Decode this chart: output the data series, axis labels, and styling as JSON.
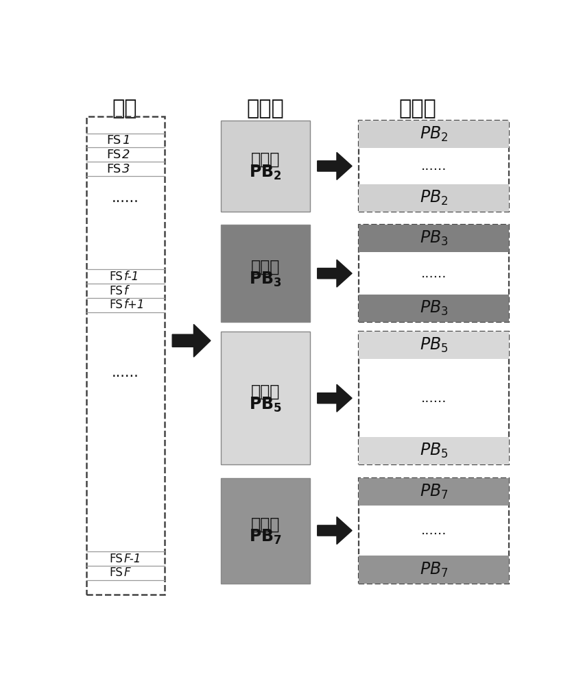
{
  "title_col1": "频片",
  "title_col2": "频块段",
  "title_col3": "素数块",
  "bg_color": "#ffffff",
  "pb2_color": "#d0d0d0",
  "pb3_color": "#808080",
  "pb5_color": "#d8d8d8",
  "pb7_color": "#939393",
  "arrow_color": "#1a1a1a",
  "fs_labels_top": [
    "FS  1",
    "FS  2",
    "FS  3"
  ],
  "fs_labels_mid": [
    "FS f-1",
    "FS f",
    "FS f+1"
  ],
  "fs_labels_bot": [
    "FS F-1",
    "FS F"
  ],
  "dots": "......",
  "block_labels_cn": [
    "频块段",
    "频块段",
    "频块段",
    "频块段"
  ],
  "block_labels_en": [
    "$\\mathbf{PB_2}$",
    "$\\mathbf{PB_3}$",
    "$\\mathbf{PB_5}$",
    "$\\mathbf{PB_7}$"
  ],
  "pb_names": [
    "$PB_2$",
    "$PB_3$",
    "$PB_5$",
    "$PB_7$"
  ],
  "title_fontsize": 22,
  "label_fontsize": 13,
  "block_cn_fontsize": 17,
  "block_en_fontsize": 17,
  "pb_fontsize": 17
}
